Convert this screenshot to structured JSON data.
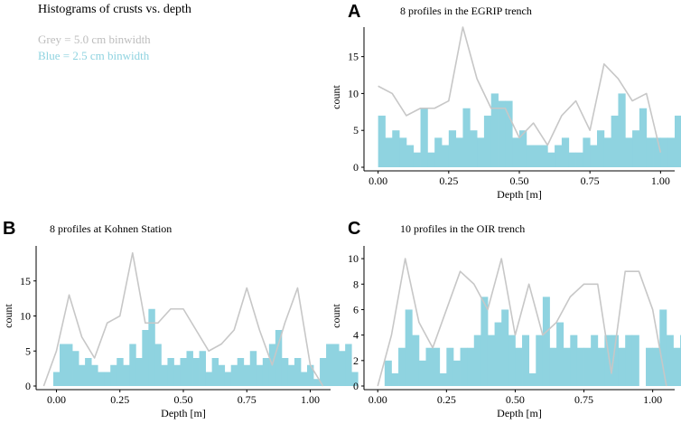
{
  "header": {
    "title": "Histograms of crusts vs. depth",
    "legend_grey": "Grey = 5.0 cm binwidth",
    "legend_blue": "Blue = 2.5 cm binwidth"
  },
  "colors": {
    "grey": "#c7c7c7",
    "blue": "#8fd3e0",
    "axis": "#000000"
  },
  "chart_data": [
    {
      "type": "bar",
      "panel": "A",
      "title": "8 profiles in the EGRIP trench",
      "xlabel": "Depth [m]",
      "ylabel": "count",
      "xlim": [
        -0.05,
        1.05
      ],
      "ylim": [
        0,
        19
      ],
      "xticks": [
        0.0,
        0.25,
        0.5,
        0.75,
        1.0
      ],
      "xtick_labels": [
        "0.00",
        "0.25",
        "0.50",
        "0.75",
        "1.00"
      ],
      "yticks": [
        0,
        5,
        10,
        15
      ],
      "ytick_labels": [
        "0",
        "5",
        "10",
        "15"
      ],
      "blue_binwidth": 0.025,
      "blue_start": 0.0,
      "blue_values": [
        7,
        4,
        5,
        4,
        3,
        2,
        8,
        2,
        4,
        3,
        5,
        4,
        8,
        5,
        4,
        7,
        10,
        9,
        9,
        4,
        5,
        3,
        3,
        3,
        2,
        3,
        4,
        2,
        2,
        4,
        3,
        5,
        4,
        7,
        10,
        4,
        5,
        8,
        4,
        4,
        4,
        4,
        7,
        6,
        3,
        2
      ],
      "grey_line": {
        "x": [
          0.0,
          0.05,
          0.1,
          0.15,
          0.2,
          0.25,
          0.3,
          0.35,
          0.4,
          0.45,
          0.5,
          0.55,
          0.6,
          0.65,
          0.7,
          0.75,
          0.8,
          0.85,
          0.9,
          0.95,
          1.0
        ],
        "y": [
          11,
          10,
          7,
          8,
          8,
          9,
          19,
          12,
          8,
          8,
          4,
          6,
          3,
          7,
          9,
          5,
          14,
          12,
          9,
          10,
          2
        ]
      }
    },
    {
      "type": "bar",
      "panel": "B",
      "title": "8 profiles at Kohnen Station",
      "xlabel": "Depth [m]",
      "ylabel": "count",
      "xlim": [
        -0.08,
        1.08
      ],
      "ylim": [
        0,
        20
      ],
      "xticks": [
        0.0,
        0.25,
        0.5,
        0.75,
        1.0
      ],
      "xtick_labels": [
        "0.00",
        "0.25",
        "0.50",
        "0.75",
        "1.00"
      ],
      "yticks": [
        0,
        5,
        10,
        15
      ],
      "ytick_labels": [
        "0",
        "5",
        "10",
        "15"
      ],
      "blue_binwidth": 0.025,
      "blue_start": -0.0125,
      "blue_values": [
        2,
        6,
        6,
        5,
        3,
        4,
        3,
        2,
        2,
        3,
        4,
        3,
        6,
        4,
        8,
        11,
        6,
        3,
        4,
        3,
        4,
        5,
        4,
        5,
        2,
        4,
        3,
        2,
        3,
        4,
        3,
        5,
        3,
        4,
        6,
        8,
        4,
        3,
        4,
        2,
        3,
        1,
        4,
        6,
        6,
        5,
        6,
        2
      ],
      "grey_line": {
        "x": [
          -0.05,
          0.0,
          0.05,
          0.1,
          0.15,
          0.2,
          0.25,
          0.3,
          0.35,
          0.4,
          0.45,
          0.5,
          0.55,
          0.6,
          0.65,
          0.7,
          0.75,
          0.8,
          0.85,
          0.9,
          0.95,
          1.0,
          1.05
        ],
        "y": [
          0,
          5,
          13,
          7,
          4,
          9,
          10,
          19,
          9,
          9,
          11,
          11,
          8,
          5,
          6,
          8,
          14,
          8,
          3,
          9,
          14,
          3,
          0
        ]
      }
    },
    {
      "type": "bar",
      "panel": "C",
      "title": "10 profiles in the OIR trench",
      "xlabel": "Depth [m]",
      "ylabel": "count",
      "xlim": [
        -0.05,
        1.08
      ],
      "ylim": [
        0,
        11
      ],
      "xticks": [
        0.0,
        0.25,
        0.5,
        0.75,
        1.0
      ],
      "xtick_labels": [
        "0.00",
        "0.25",
        "0.50",
        "0.75",
        "1.00"
      ],
      "yticks": [
        0,
        2,
        4,
        6,
        8,
        10
      ],
      "ytick_labels": [
        "0",
        "2",
        "4",
        "6",
        "8",
        "10"
      ],
      "blue_binwidth": 0.025,
      "blue_start": 0.0,
      "blue_values": [
        0,
        2,
        1,
        3,
        6,
        4,
        2,
        3,
        3,
        1,
        3,
        2,
        3,
        3,
        4,
        7,
        4,
        5,
        6,
        4,
        3,
        4,
        1,
        4,
        7,
        3,
        5,
        3,
        4,
        3,
        3,
        4,
        3,
        4,
        4,
        3,
        4,
        4,
        0,
        3,
        3,
        6,
        4,
        3,
        4,
        3,
        1
      ],
      "grey_line": {
        "x": [
          0.0,
          0.05,
          0.1,
          0.15,
          0.2,
          0.25,
          0.3,
          0.35,
          0.4,
          0.45,
          0.5,
          0.55,
          0.6,
          0.65,
          0.7,
          0.75,
          0.8,
          0.85,
          0.9,
          0.95,
          1.0,
          1.05
        ],
        "y": [
          0,
          4,
          10,
          5,
          3,
          6,
          9,
          8,
          6,
          10,
          4,
          8,
          4,
          5,
          7,
          8,
          8,
          1,
          9,
          9,
          6,
          0
        ]
      }
    }
  ]
}
